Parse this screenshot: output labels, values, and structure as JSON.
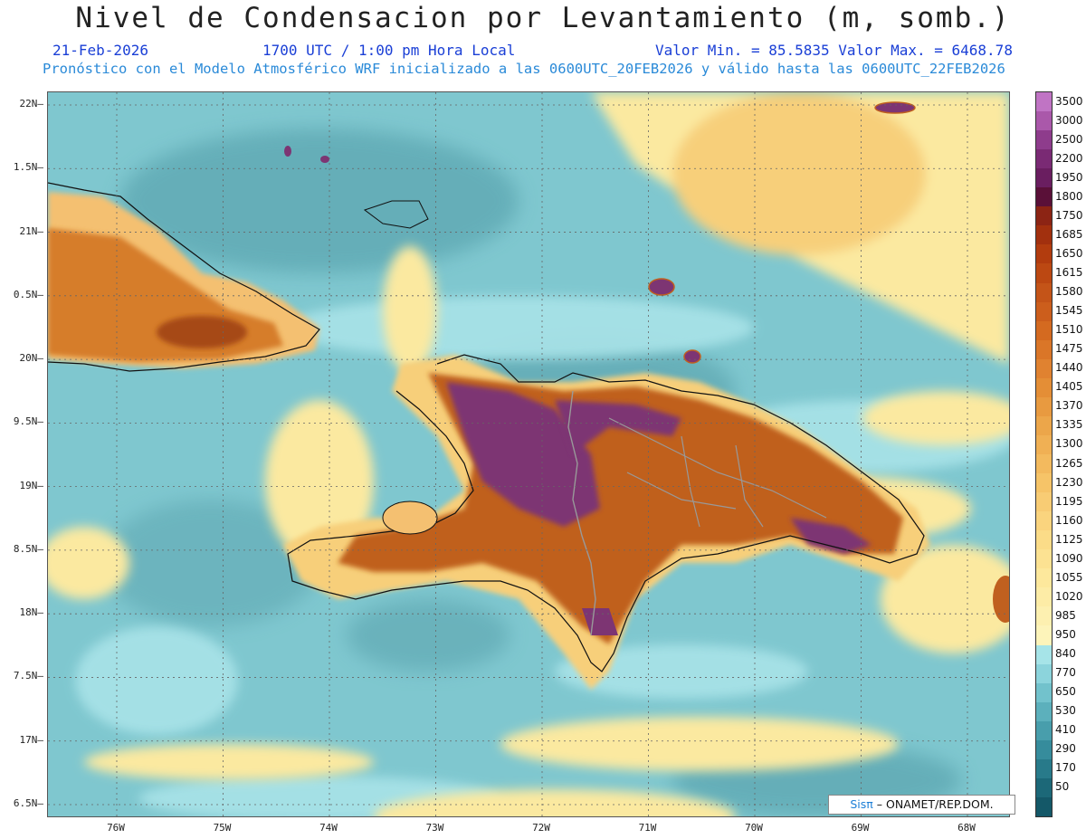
{
  "title": "Nivel de Condensacion por Levantamiento (m, somb.)",
  "date": "21-Feb-2026",
  "time": "1700 UTC / 1:00 pm Hora Local",
  "value_range": "Valor Min. = 85.5835  Valor Max. = 6468.78",
  "model_info": "Pronóstico con el Modelo Atmosférico WRF inicializado a las 0600UTC_20FEB2026 y válido hasta las  0600UTC_22FEB2026",
  "lat_labels": [
    "22N",
    "1.5N",
    "21N",
    "0.5N",
    "20N",
    "9.5N",
    "19N",
    "8.5N",
    "18N",
    "7.5N",
    "17N",
    "6.5N"
  ],
  "lon_labels": [
    "76W",
    "75W",
    "74W",
    "73W",
    "72W",
    "71W",
    "70W",
    "69W",
    "68W"
  ],
  "colorbar": {
    "labels": [
      "3500",
      "3000",
      "2500",
      "2200",
      "1950",
      "1800",
      "1750",
      "1685",
      "1650",
      "1615",
      "1580",
      "1545",
      "1510",
      "1475",
      "1440",
      "1405",
      "1370",
      "1335",
      "1300",
      "1265",
      "1230",
      "1195",
      "1160",
      "1125",
      "1090",
      "1055",
      "1020",
      "985",
      "950",
      "840",
      "770",
      "650",
      "530",
      "410",
      "290",
      "170",
      "50"
    ],
    "colors": [
      "#c074c4",
      "#aa58aa",
      "#8e3c8c",
      "#7a2a74",
      "#6a1e60",
      "#5a1038",
      "#8c2414",
      "#a2300e",
      "#b23c0e",
      "#bc4812",
      "#c45418",
      "#cc5e1c",
      "#d46a20",
      "#da7628",
      "#e08230",
      "#e48e36",
      "#e89a40",
      "#eca64a",
      "#f0b054",
      "#f3ba5e",
      "#f6c468",
      "#f8cc74",
      "#fad47e",
      "#fbdc88",
      "#fce292",
      "#fde89c",
      "#fdeca6",
      "#fdf0b0",
      "#fdf4ba",
      "#a6e4e8",
      "#8cd4dc",
      "#72c2cc",
      "#5cb0bc",
      "#489eac",
      "#368c9c",
      "#287a8a",
      "#1c6878"
    ]
  },
  "credit": {
    "prefix": "Sisπ",
    "text": "– ONAMET/REP.DOM."
  },
  "colors": {
    "ocean": "#7fc7cf",
    "land_brown": "#b5561f",
    "purple": "#7d3573",
    "yellow": "#fbe9a0"
  }
}
